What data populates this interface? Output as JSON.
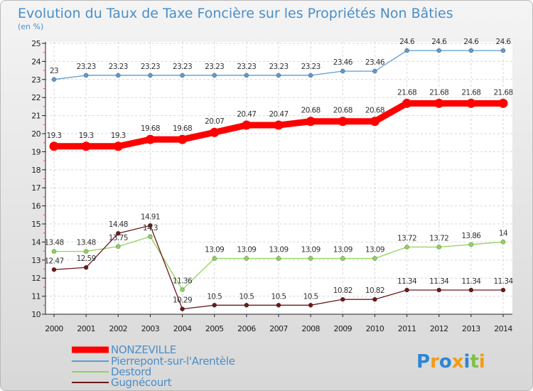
{
  "chart_data": {
    "type": "line",
    "title": "Evolution du Taux de Taxe Foncière sur les Propriétés Non Bâties",
    "ylabel": "(en %)",
    "xlabel": "",
    "ylim": [
      10,
      25
    ],
    "yticks": [
      10,
      11,
      12,
      13,
      14,
      15,
      16,
      17,
      18,
      19,
      20,
      21,
      22,
      23,
      24,
      25
    ],
    "categories": [
      "2000",
      "2001",
      "2002",
      "2003",
      "2004",
      "2005",
      "2006",
      "2007",
      "2008",
      "2009",
      "2010",
      "2011",
      "2012",
      "2013",
      "2014"
    ],
    "series": [
      {
        "name": "NONZEVILLE",
        "color": "#ff0000",
        "values": [
          19.3,
          19.3,
          19.3,
          19.68,
          19.68,
          20.07,
          20.47,
          20.47,
          20.68,
          20.68,
          20.68,
          21.68,
          21.68,
          21.68,
          21.68
        ],
        "labels": [
          "19.3",
          "19.3",
          "19.3",
          "19.68",
          "19.68",
          "20.07",
          "20.47",
          "20.47",
          "20.68",
          "20.68",
          "20.68",
          "21.68",
          "21.68",
          "21.68",
          "21.68"
        ]
      },
      {
        "name": "Pierrepont-sur-l'Arentèle",
        "color": "#5b9bd5",
        "values": [
          23,
          23.23,
          23.23,
          23.23,
          23.23,
          23.23,
          23.23,
          23.23,
          23.23,
          23.46,
          23.46,
          24.6,
          24.6,
          24.6,
          24.6
        ],
        "labels": [
          "23",
          "23.23",
          "23.23",
          "23.23",
          "23.23",
          "23.23",
          "23.23",
          "23.23",
          "23.23",
          "23.46",
          "23.46",
          "24.6",
          "24.6",
          "24.6",
          "24.6"
        ]
      },
      {
        "name": "Destord",
        "color": "#8ed45a",
        "values": [
          13.48,
          13.48,
          13.75,
          14.3,
          11.36,
          13.09,
          13.09,
          13.09,
          13.09,
          13.09,
          13.09,
          13.72,
          13.72,
          13.86,
          14
        ],
        "labels": [
          "13.48",
          "13.48",
          "13.75",
          "14.3",
          "11.36",
          "13.09",
          "13.09",
          "13.09",
          "13.09",
          "13.09",
          "13.09",
          "13.72",
          "13.72",
          "13.86",
          "14"
        ]
      },
      {
        "name": "Gugnécourt",
        "color": "#6b1a1a",
        "values": [
          12.47,
          12.59,
          14.48,
          14.91,
          10.29,
          10.5,
          10.5,
          10.5,
          10.5,
          10.82,
          10.82,
          11.34,
          11.34,
          11.34,
          11.34
        ],
        "labels": [
          "12.47",
          "12.59",
          "14.48",
          "14.91",
          "10.29",
          "10.5",
          "10.5",
          "10.5",
          "10.5",
          "10.82",
          "10.82",
          "11.34",
          "11.34",
          "11.34",
          "11.34"
        ]
      }
    ]
  },
  "logo": {
    "text": "Proxiti",
    "letters": [
      "P",
      "r",
      "o",
      "x",
      "i",
      "t",
      "i"
    ],
    "colors": [
      "#2e86d4",
      "#f39c12",
      "#2e86d4",
      "#f39c12",
      "#2e86d4",
      "#7cc242",
      "#f39c12"
    ]
  }
}
